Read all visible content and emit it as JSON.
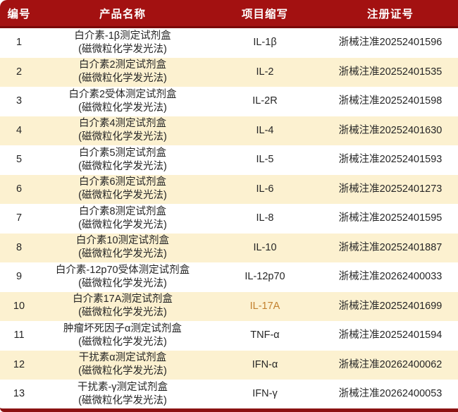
{
  "chart_data": {
    "type": "table",
    "title": "",
    "columns": [
      "编号",
      "产品名称",
      "项目缩写",
      "注册证号"
    ],
    "rows": [
      {
        "no": "1",
        "name": "白介素-1β测定试剂盒",
        "method": "(磁微粒化学发光法)",
        "abbr": "IL-1β",
        "cert": "浙械注准20252401596"
      },
      {
        "no": "2",
        "name": "白介素2测定试剂盒",
        "method": "(磁微粒化学发光法)",
        "abbr": "IL-2",
        "cert": "浙械注准20252401535"
      },
      {
        "no": "3",
        "name": "白介素2受体测定试剂盒",
        "method": "(磁微粒化学发光法)",
        "abbr": "IL-2R",
        "cert": "浙械注准20252401598"
      },
      {
        "no": "4",
        "name": "白介素4测定试剂盒",
        "method": "(磁微粒化学发光法)",
        "abbr": "IL-4",
        "cert": "浙械注准20252401630"
      },
      {
        "no": "5",
        "name": "白介素5测定试剂盒",
        "method": "(磁微粒化学发光法)",
        "abbr": "IL-5",
        "cert": "浙械注准20252401593"
      },
      {
        "no": "6",
        "name": "白介素6测定试剂盒",
        "method": "(磁微粒化学发光法)",
        "abbr": "IL-6",
        "cert": "浙械注准20252401273"
      },
      {
        "no": "7",
        "name": "白介素8测定试剂盒",
        "method": "(磁微粒化学发光法)",
        "abbr": "IL-8",
        "cert": "浙械注准20252401595"
      },
      {
        "no": "8",
        "name": "白介素10测定试剂盒",
        "method": "(磁微粒化学发光法)",
        "abbr": "IL-10",
        "cert": "浙械注准20252401887"
      },
      {
        "no": "9",
        "name": "白介素-12p70受体测定试剂盒",
        "method": "(磁微粒化学发光法)",
        "abbr": "IL-12p70",
        "cert": "浙械注准20262400033"
      },
      {
        "no": "10",
        "name": "白介素17A测定试剂盒",
        "method": "(磁微粒化学发光法)",
        "abbr": "IL-17A",
        "cert": "浙械注准20252401699",
        "abbr_color": "#c2802e"
      },
      {
        "no": "11",
        "name": "肿瘤坏死因子α测定试剂盒",
        "method": "(磁微粒化学发光法)",
        "abbr": "TNF-α",
        "cert": "浙械注准20252401594"
      },
      {
        "no": "12",
        "name": "干扰素α测定试剂盒",
        "method": "(磁微粒化学发光法)",
        "abbr": "IFN-α",
        "cert": "浙械注准20262400062"
      },
      {
        "no": "13",
        "name": "干扰素-γ测定试剂盒",
        "method": "(磁微粒化学发光法)",
        "abbr": "IFN-γ",
        "cert": "浙械注准20262400053"
      }
    ]
  },
  "colors": {
    "header_bg": "#a31111",
    "header_border": "#7a0909",
    "header_text": "#ffffff",
    "row_alt_bg": "#fcf1d0",
    "bottom_border": "#8b1212",
    "body_text": "#262626",
    "highlight_abbr": "#c2802e"
  }
}
